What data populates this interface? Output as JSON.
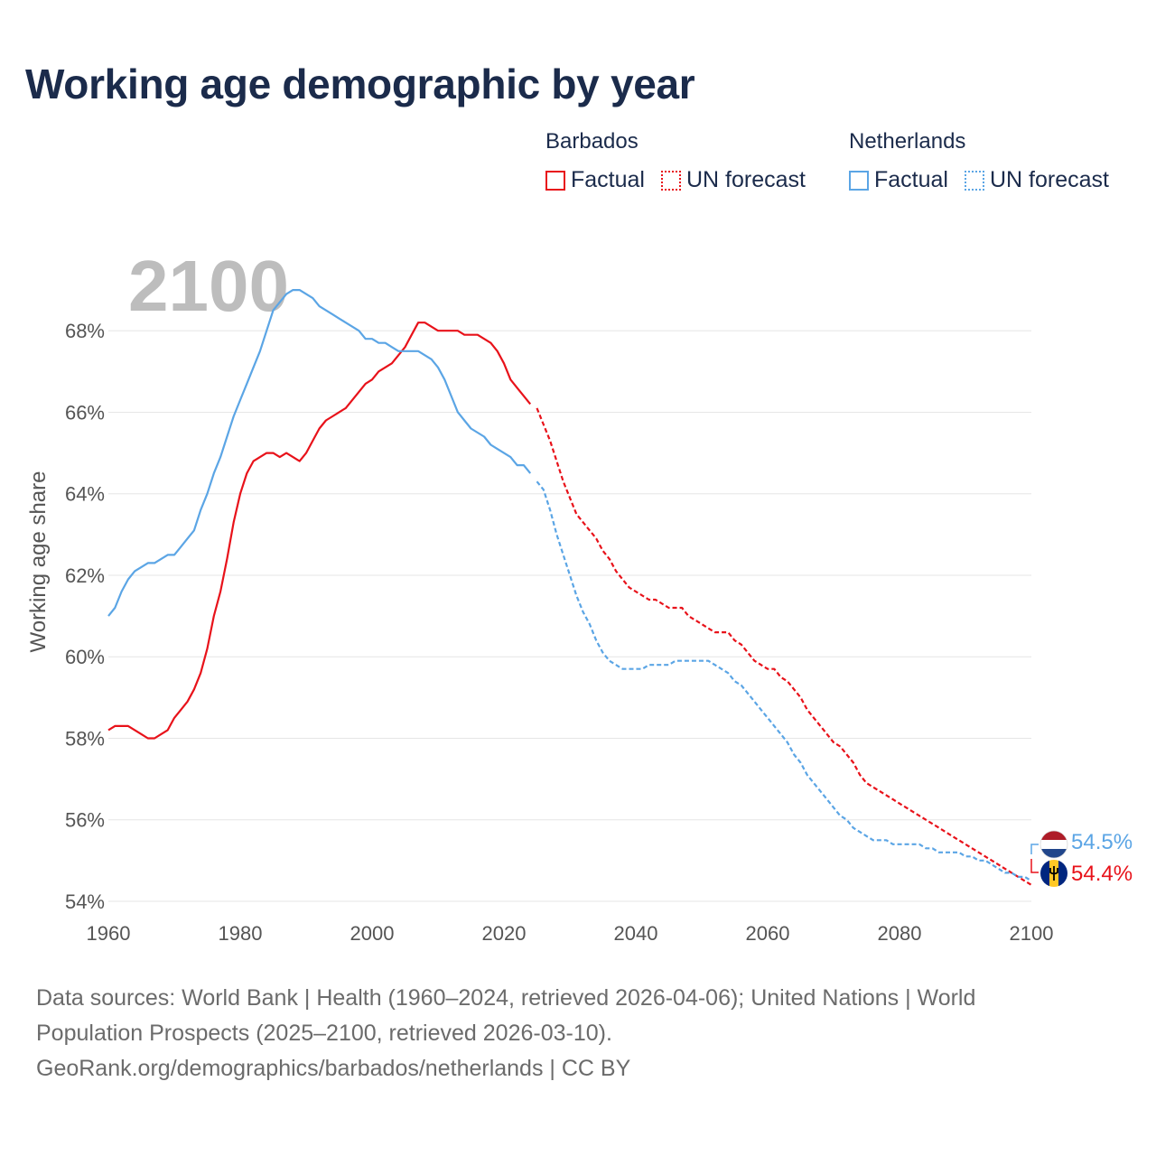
{
  "title": "Working age demographic by year",
  "legend": {
    "groups": [
      {
        "name": "Barbados",
        "color": "#e8121a",
        "items": [
          "Factual",
          "UN forecast"
        ]
      },
      {
        "name": "Netherlands",
        "color": "#5ba5e5",
        "items": [
          "Factual",
          "UN forecast"
        ]
      }
    ]
  },
  "footer": {
    "line1": "Data sources: World Bank | Health (1960–2024, retrieved 2026-04-06); United Nations | World",
    "line2": "Population Prospects (2025–2100, retrieved 2026-03-10).",
    "line3": "GeoRank.org/demographics/barbados/netherlands | CC BY"
  },
  "flags": {
    "netherlands": {
      "icon": "netherlands-flag-icon",
      "colors": [
        "#ae1c28",
        "#ffffff",
        "#21468b"
      ]
    },
    "barbados": {
      "icon": "barbados-flag-icon",
      "colors": [
        "#00267f",
        "#ffc726",
        "#000000"
      ]
    }
  },
  "chart_data": {
    "type": "line",
    "title": "Working age demographic by year",
    "xlabel": "",
    "ylabel": "Working age share",
    "year_label": "2100",
    "xlim": [
      1960,
      2100
    ],
    "ylim": [
      53.6,
      69.6
    ],
    "xticks": [
      1960,
      1980,
      2000,
      2020,
      2040,
      2060,
      2080,
      2100
    ],
    "xtick_labels": [
      "1960",
      "1980",
      "2000",
      "2020",
      "2040",
      "2060",
      "2080",
      "2100"
    ],
    "yticks": [
      54,
      56,
      58,
      60,
      62,
      64,
      66,
      68
    ],
    "ytick_labels": [
      "54%",
      "56%",
      "58%",
      "60%",
      "62%",
      "64%",
      "66%",
      "68%"
    ],
    "grid": true,
    "legend_position": "top-right",
    "series": [
      {
        "name": "Barbados",
        "part": "Factual",
        "color": "#e8121a",
        "style": "solid",
        "x": [
          1960,
          1961,
          1962,
          1963,
          1964,
          1965,
          1966,
          1967,
          1968,
          1969,
          1970,
          1971,
          1972,
          1973,
          1974,
          1975,
          1976,
          1977,
          1978,
          1979,
          1980,
          1981,
          1982,
          1983,
          1984,
          1985,
          1986,
          1987,
          1988,
          1989,
          1990,
          1991,
          1992,
          1993,
          1994,
          1995,
          1996,
          1997,
          1998,
          1999,
          2000,
          2001,
          2002,
          2003,
          2004,
          2005,
          2006,
          2007,
          2008,
          2009,
          2010,
          2011,
          2012,
          2013,
          2014,
          2015,
          2016,
          2017,
          2018,
          2019,
          2020,
          2021,
          2022,
          2023,
          2024
        ],
        "values": [
          58.2,
          58.3,
          58.3,
          58.3,
          58.2,
          58.1,
          58.0,
          58.0,
          58.1,
          58.2,
          58.5,
          58.7,
          58.9,
          59.2,
          59.6,
          60.2,
          61.0,
          61.6,
          62.4,
          63.3,
          64.0,
          64.5,
          64.8,
          64.9,
          65.0,
          65.0,
          64.9,
          65.0,
          64.9,
          64.8,
          65.0,
          65.3,
          65.6,
          65.8,
          65.9,
          66.0,
          66.1,
          66.3,
          66.5,
          66.7,
          66.8,
          67.0,
          67.1,
          67.2,
          67.4,
          67.6,
          67.9,
          68.2,
          68.2,
          68.1,
          68.0,
          68.0,
          68.0,
          68.0,
          67.9,
          67.9,
          67.9,
          67.8,
          67.7,
          67.5,
          67.2,
          66.8,
          66.6,
          66.4,
          66.2
        ]
      },
      {
        "name": "Barbados",
        "part": "UN forecast",
        "color": "#e8121a",
        "style": "dotted",
        "x": [
          2025,
          2026,
          2027,
          2028,
          2029,
          2030,
          2031,
          2032,
          2033,
          2034,
          2035,
          2036,
          2037,
          2038,
          2039,
          2040,
          2041,
          2042,
          2043,
          2044,
          2045,
          2046,
          2047,
          2048,
          2049,
          2050,
          2051,
          2052,
          2053,
          2054,
          2055,
          2056,
          2057,
          2058,
          2059,
          2060,
          2061,
          2062,
          2063,
          2064,
          2065,
          2066,
          2067,
          2068,
          2069,
          2070,
          2071,
          2072,
          2073,
          2074,
          2075,
          2076,
          2077,
          2078,
          2079,
          2080,
          2081,
          2082,
          2083,
          2084,
          2085,
          2086,
          2087,
          2088,
          2089,
          2090,
          2091,
          2092,
          2093,
          2094,
          2095,
          2096,
          2097,
          2098,
          2099,
          2100
        ],
        "values": [
          66.1,
          65.7,
          65.3,
          64.8,
          64.3,
          63.9,
          63.5,
          63.3,
          63.1,
          62.9,
          62.6,
          62.4,
          62.1,
          61.9,
          61.7,
          61.6,
          61.5,
          61.4,
          61.4,
          61.3,
          61.2,
          61.2,
          61.2,
          61.0,
          60.9,
          60.8,
          60.7,
          60.6,
          60.6,
          60.6,
          60.4,
          60.3,
          60.1,
          59.9,
          59.8,
          59.7,
          59.7,
          59.5,
          59.4,
          59.2,
          59.0,
          58.7,
          58.5,
          58.3,
          58.1,
          57.9,
          57.8,
          57.6,
          57.4,
          57.1,
          56.9,
          56.8,
          56.7,
          56.6,
          56.5,
          56.4,
          56.3,
          56.2,
          56.1,
          56.0,
          55.9,
          55.8,
          55.7,
          55.6,
          55.5,
          55.4,
          55.3,
          55.2,
          55.1,
          55.0,
          54.9,
          54.8,
          54.7,
          54.6,
          54.5,
          54.4
        ]
      },
      {
        "name": "Netherlands",
        "part": "Factual",
        "color": "#5ba5e5",
        "style": "solid",
        "x": [
          1960,
          1961,
          1962,
          1963,
          1964,
          1965,
          1966,
          1967,
          1968,
          1969,
          1970,
          1971,
          1972,
          1973,
          1974,
          1975,
          1976,
          1977,
          1978,
          1979,
          1980,
          1981,
          1982,
          1983,
          1984,
          1985,
          1986,
          1987,
          1988,
          1989,
          1990,
          1991,
          1992,
          1993,
          1994,
          1995,
          1996,
          1997,
          1998,
          1999,
          2000,
          2001,
          2002,
          2003,
          2004,
          2005,
          2006,
          2007,
          2008,
          2009,
          2010,
          2011,
          2012,
          2013,
          2014,
          2015,
          2016,
          2017,
          2018,
          2019,
          2020,
          2021,
          2022,
          2023,
          2024
        ],
        "values": [
          61.0,
          61.2,
          61.6,
          61.9,
          62.1,
          62.2,
          62.3,
          62.3,
          62.4,
          62.5,
          62.5,
          62.7,
          62.9,
          63.1,
          63.6,
          64.0,
          64.5,
          64.9,
          65.4,
          65.9,
          66.3,
          66.7,
          67.1,
          67.5,
          68.0,
          68.5,
          68.7,
          68.9,
          69.0,
          69.0,
          68.9,
          68.8,
          68.6,
          68.5,
          68.4,
          68.3,
          68.2,
          68.1,
          68.0,
          67.8,
          67.8,
          67.7,
          67.7,
          67.6,
          67.5,
          67.5,
          67.5,
          67.5,
          67.4,
          67.3,
          67.1,
          66.8,
          66.4,
          66.0,
          65.8,
          65.6,
          65.5,
          65.4,
          65.2,
          65.1,
          65.0,
          64.9,
          64.7,
          64.7,
          64.5
        ]
      },
      {
        "name": "Netherlands",
        "part": "UN forecast",
        "color": "#5ba5e5",
        "style": "dotted",
        "x": [
          2025,
          2026,
          2027,
          2028,
          2029,
          2030,
          2031,
          2032,
          2033,
          2034,
          2035,
          2036,
          2037,
          2038,
          2039,
          2040,
          2041,
          2042,
          2043,
          2044,
          2045,
          2046,
          2047,
          2048,
          2049,
          2050,
          2051,
          2052,
          2053,
          2054,
          2055,
          2056,
          2057,
          2058,
          2059,
          2060,
          2061,
          2062,
          2063,
          2064,
          2065,
          2066,
          2067,
          2068,
          2069,
          2070,
          2071,
          2072,
          2073,
          2074,
          2075,
          2076,
          2077,
          2078,
          2079,
          2080,
          2081,
          2082,
          2083,
          2084,
          2085,
          2086,
          2087,
          2088,
          2089,
          2090,
          2091,
          2092,
          2093,
          2094,
          2095,
          2096,
          2097,
          2098,
          2099,
          2100
        ],
        "values": [
          64.3,
          64.1,
          63.6,
          63.0,
          62.5,
          62.0,
          61.5,
          61.1,
          60.8,
          60.4,
          60.1,
          59.9,
          59.8,
          59.7,
          59.7,
          59.7,
          59.7,
          59.8,
          59.8,
          59.8,
          59.8,
          59.9,
          59.9,
          59.9,
          59.9,
          59.9,
          59.9,
          59.8,
          59.7,
          59.6,
          59.4,
          59.3,
          59.1,
          58.9,
          58.7,
          58.5,
          58.3,
          58.1,
          57.9,
          57.6,
          57.4,
          57.1,
          56.9,
          56.7,
          56.5,
          56.3,
          56.1,
          56.0,
          55.8,
          55.7,
          55.6,
          55.5,
          55.5,
          55.5,
          55.4,
          55.4,
          55.4,
          55.4,
          55.4,
          55.3,
          55.3,
          55.2,
          55.2,
          55.2,
          55.2,
          55.1,
          55.1,
          55.0,
          55.0,
          54.9,
          54.8,
          54.7,
          54.7,
          54.6,
          54.6,
          54.5
        ]
      }
    ],
    "end_labels": [
      {
        "country": "Netherlands",
        "label": "54.5%",
        "color": "#5ba5e5"
      },
      {
        "country": "Barbados",
        "label": "54.4%",
        "color": "#e8121a"
      }
    ]
  }
}
